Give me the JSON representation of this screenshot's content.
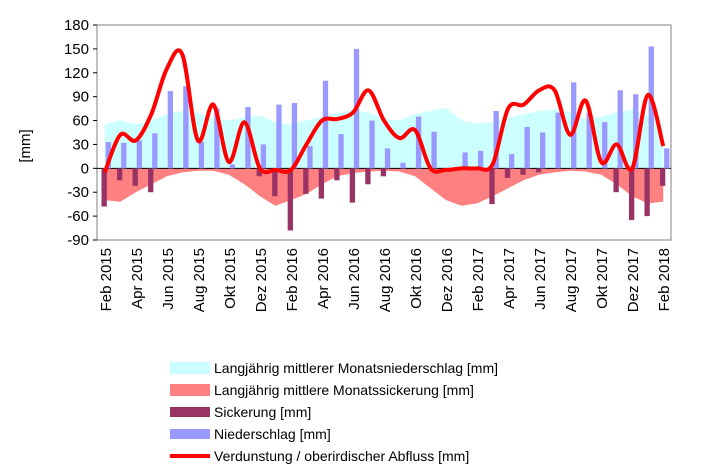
{
  "chart_data": {
    "type": "bar",
    "ylabel": "[mm]",
    "ylim": [
      -90,
      180
    ],
    "yticks": [
      180,
      150,
      120,
      90,
      60,
      30,
      0,
      -30,
      -60,
      -90
    ],
    "ytick_labels": [
      "180",
      "150",
      "120",
      "90",
      "60",
      "30",
      "0",
      "-30",
      "-60",
      "-90"
    ],
    "categories": [
      "Feb 2015",
      "Mar 2015",
      "Apr 2015",
      "Mai 2015",
      "Jun 2015",
      "Jul 2015",
      "Aug 2015",
      "Sep 2015",
      "Okt 2015",
      "Nov 2015",
      "Dez 2015",
      "Jan 2016",
      "Feb 2016",
      "Mär 2016",
      "Apr 2016",
      "Mai 2016",
      "Jun 2016",
      "Jul 2016",
      "Aug 2016",
      "Sep 2016",
      "Okt 2016",
      "Nov 2016",
      "Dez 2016",
      "Jan 2017",
      "Feb 2017",
      "Mär 2017",
      "Apr 2017",
      "Mai 2017",
      "Jun 2017",
      "Jul 2017",
      "Aug 2017",
      "Sep 2017",
      "Okt 2017",
      "Nov 2017",
      "Dez 2017",
      "Jan 2018",
      "Feb 2018"
    ],
    "x_tick_labels": [
      "Feb 2015",
      "Apr 2015",
      "Jun 2015",
      "Aug 2015",
      "Okt 2015",
      "Dez 2015",
      "Feb 2016",
      "Apr 2016",
      "Jun 2016",
      "Aug 2016",
      "Okt 2016",
      "Dez 2016",
      "Feb 2017",
      "Apr 2017",
      "Jun 2017",
      "Aug 2017",
      "Okt 2017",
      "Dez 2017",
      "Feb 2018"
    ],
    "series": [
      {
        "name": "Langjährig mittlerer Monatsniederschlag [mm]",
        "kind": "area",
        "color": "#ccffff",
        "values": [
          55,
          60,
          55,
          60,
          68,
          72,
          70,
          62,
          60,
          64,
          66,
          58,
          55,
          60,
          65,
          70,
          72,
          70,
          62,
          60,
          68,
          72,
          76,
          60,
          56,
          58,
          63,
          68,
          72,
          74,
          70,
          62,
          65,
          70,
          74,
          66,
          56
        ]
      },
      {
        "name": "Langjährig mittlere Monatssickerung [mm]",
        "kind": "area",
        "color": "#ff8080",
        "values": [
          -40,
          -42,
          -30,
          -20,
          -10,
          -5,
          -3,
          -3,
          -8,
          -20,
          -35,
          -47,
          -40,
          -32,
          -20,
          -10,
          -6,
          -4,
          -3,
          -4,
          -10,
          -25,
          -40,
          -47,
          -44,
          -35,
          -25,
          -15,
          -8,
          -5,
          -3,
          -4,
          -8,
          -20,
          -35,
          -44,
          -42
        ]
      },
      {
        "name": "Sickerung [mm]",
        "kind": "bar",
        "color": "#993366",
        "values": [
          -48,
          -15,
          -22,
          -30,
          0,
          0,
          0,
          0,
          0,
          0,
          -10,
          -35,
          -78,
          -32,
          -38,
          -15,
          -43,
          -20,
          -10,
          0,
          0,
          0,
          0,
          0,
          0,
          -45,
          -12,
          -8,
          -5,
          0,
          0,
          0,
          0,
          -30,
          -65,
          -60,
          -22
        ]
      },
      {
        "name": "Niederschlag [mm]",
        "kind": "bar",
        "color": "#9999ff",
        "values": [
          33,
          32,
          35,
          44,
          97,
          103,
          33,
          75,
          5,
          77,
          30,
          80,
          82,
          28,
          110,
          43,
          150,
          60,
          25,
          7,
          65,
          46,
          0,
          20,
          22,
          72,
          18,
          52,
          45,
          70,
          108,
          70,
          58,
          98,
          93,
          153,
          25
        ]
      },
      {
        "name": "Verdunstung / oberirdischer Abfluss [mm]",
        "kind": "line",
        "color": "#ff0000",
        "values": [
          -5,
          42,
          35,
          68,
          125,
          143,
          35,
          80,
          8,
          58,
          0,
          -2,
          -2,
          30,
          60,
          62,
          70,
          98,
          60,
          38,
          48,
          0,
          -2,
          0,
          0,
          5,
          75,
          80,
          98,
          98,
          42,
          85,
          8,
          30,
          0,
          92,
          28
        ]
      }
    ]
  }
}
